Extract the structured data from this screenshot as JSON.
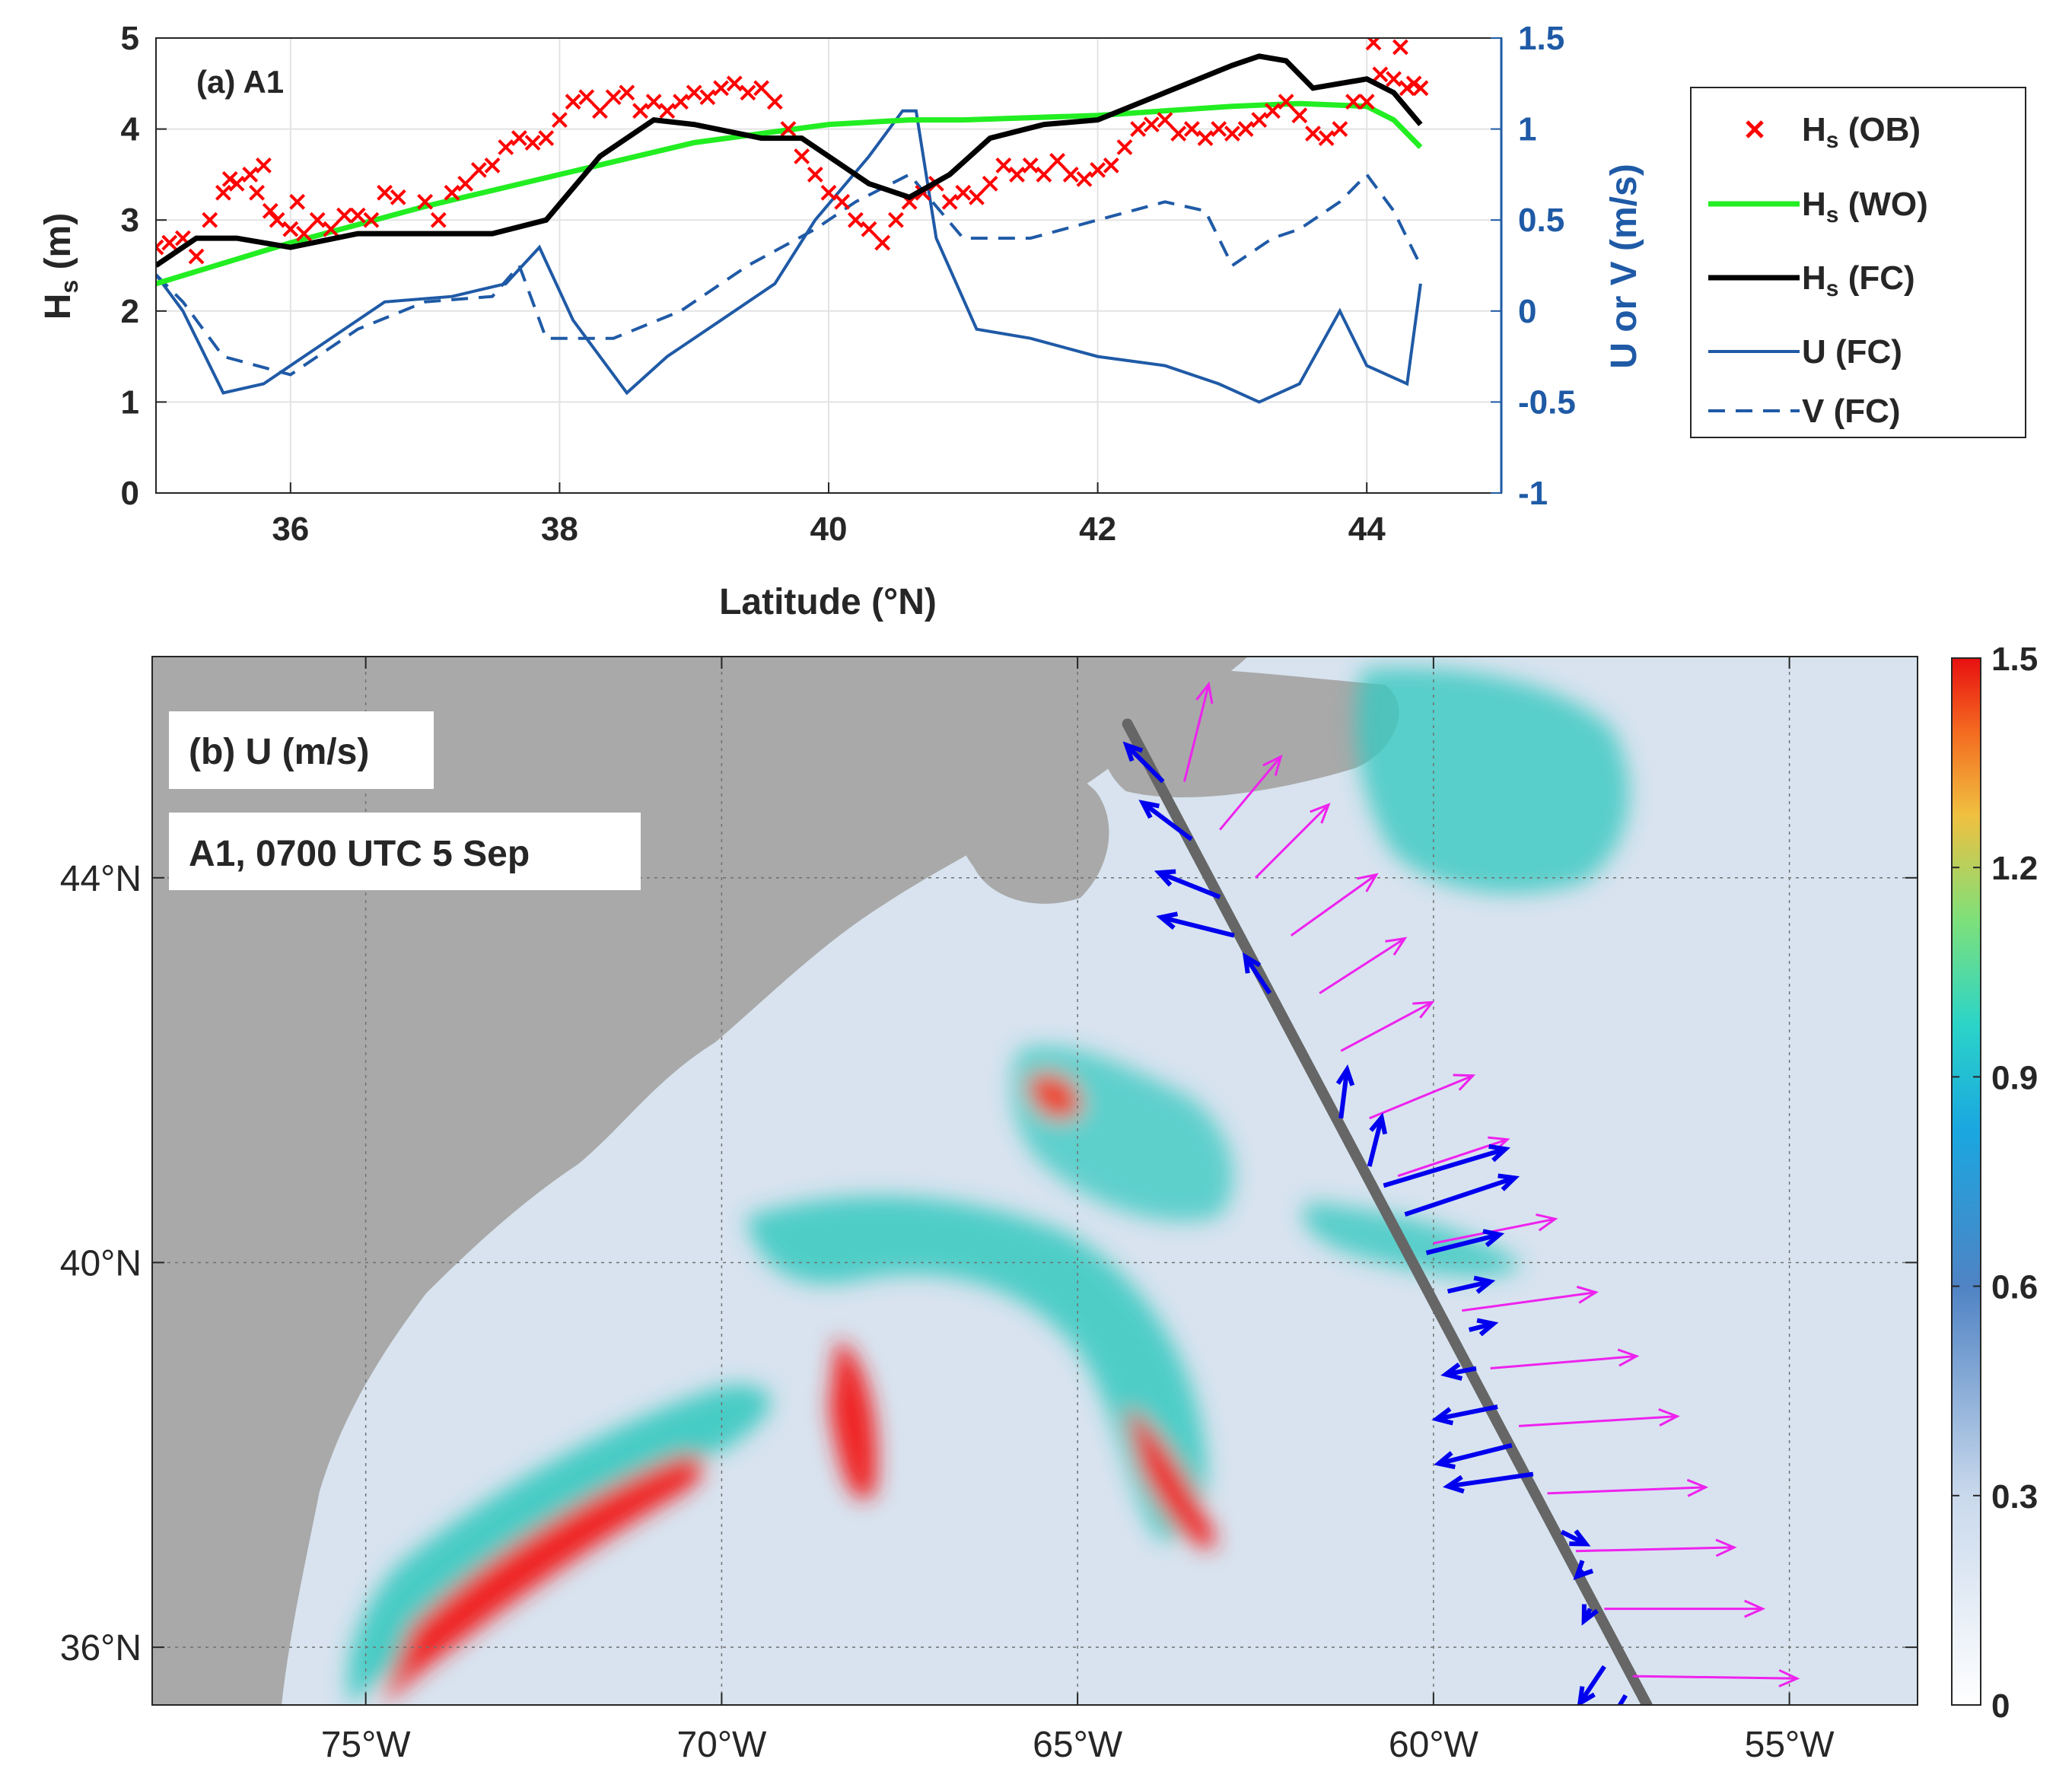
{
  "colors": {
    "obs": "#ff0000",
    "wo": "#22ee22",
    "fc": "#000000",
    "u": "#1f5aa6",
    "axis_right": "#1f5aa6",
    "land": "#a9a9a9",
    "track": "#666666",
    "arrow_blue": "#0000ee",
    "arrow_magenta": "#ee22ee"
  },
  "chart_data": [
    {
      "type": "line",
      "panel_label": "(a) A1",
      "xlabel": "Latitude (°N)",
      "ylabel_left": "Hs (m)",
      "ylabel_right": "U or V (m/s)",
      "xlim": [
        35,
        45
      ],
      "ylim_left": [
        0,
        5
      ],
      "ylim_right": [
        -1,
        1.5
      ],
      "xticks": [
        "36",
        "38",
        "40",
        "42",
        "44"
      ],
      "yticks_left": [
        "0",
        "1",
        "2",
        "3",
        "4",
        "5"
      ],
      "yticks_right": [
        "-1",
        "-0.5",
        "0",
        "0.5",
        "1",
        "1.5"
      ],
      "grid": true,
      "legend": {
        "position": "outside-right",
        "entries": [
          {
            "main": "H",
            "sub": "s",
            "tail": " (OB)"
          },
          {
            "main": "H",
            "sub": "s",
            "tail": " (WO)"
          },
          {
            "main": "H",
            "sub": "s",
            "tail": " (FC)"
          },
          {
            "main": "U",
            "sub": "",
            "tail": " (FC)"
          },
          {
            "main": "V",
            "sub": "",
            "tail": " (FC)"
          }
        ]
      },
      "series": [
        {
          "name": "Hs (OB)",
          "axis": "left",
          "style": "marker-x",
          "points": [
            [
              35.0,
              2.7
            ],
            [
              35.1,
              2.75
            ],
            [
              35.2,
              2.8
            ],
            [
              35.3,
              2.6
            ],
            [
              35.4,
              3.0
            ],
            [
              35.5,
              3.3
            ],
            [
              35.55,
              3.45
            ],
            [
              35.6,
              3.4
            ],
            [
              35.7,
              3.5
            ],
            [
              35.75,
              3.3
            ],
            [
              35.8,
              3.6
            ],
            [
              35.85,
              3.1
            ],
            [
              35.9,
              3.0
            ],
            [
              36.0,
              2.9
            ],
            [
              36.05,
              3.2
            ],
            [
              36.1,
              2.85
            ],
            [
              36.2,
              3.0
            ],
            [
              36.3,
              2.9
            ],
            [
              36.4,
              3.05
            ],
            [
              36.5,
              3.05
            ],
            [
              36.6,
              3.0
            ],
            [
              36.7,
              3.3
            ],
            [
              36.8,
              3.25
            ],
            [
              37.0,
              3.2
            ],
            [
              37.1,
              3.0
            ],
            [
              37.2,
              3.3
            ],
            [
              37.3,
              3.4
            ],
            [
              37.4,
              3.55
            ],
            [
              37.5,
              3.6
            ],
            [
              37.6,
              3.8
            ],
            [
              37.7,
              3.9
            ],
            [
              37.8,
              3.85
            ],
            [
              37.9,
              3.9
            ],
            [
              38.0,
              4.1
            ],
            [
              38.1,
              4.3
            ],
            [
              38.2,
              4.35
            ],
            [
              38.3,
              4.2
            ],
            [
              38.4,
              4.35
            ],
            [
              38.5,
              4.4
            ],
            [
              38.6,
              4.2
            ],
            [
              38.7,
              4.3
            ],
            [
              38.8,
              4.2
            ],
            [
              38.9,
              4.3
            ],
            [
              39.0,
              4.4
            ],
            [
              39.1,
              4.35
            ],
            [
              39.2,
              4.45
            ],
            [
              39.3,
              4.5
            ],
            [
              39.4,
              4.4
            ],
            [
              39.5,
              4.45
            ],
            [
              39.6,
              4.3
            ],
            [
              39.7,
              4.0
            ],
            [
              39.8,
              3.7
            ],
            [
              39.9,
              3.5
            ],
            [
              40.0,
              3.3
            ],
            [
              40.1,
              3.2
            ],
            [
              40.2,
              3.0
            ],
            [
              40.3,
              2.9
            ],
            [
              40.4,
              2.75
            ],
            [
              40.5,
              3.0
            ],
            [
              40.6,
              3.2
            ],
            [
              40.7,
              3.3
            ],
            [
              40.8,
              3.4
            ],
            [
              40.9,
              3.2
            ],
            [
              41.0,
              3.3
            ],
            [
              41.1,
              3.25
            ],
            [
              41.2,
              3.4
            ],
            [
              41.3,
              3.6
            ],
            [
              41.4,
              3.5
            ],
            [
              41.5,
              3.6
            ],
            [
              41.6,
              3.5
            ],
            [
              41.7,
              3.65
            ],
            [
              41.8,
              3.5
            ],
            [
              41.9,
              3.45
            ],
            [
              42.0,
              3.55
            ],
            [
              42.1,
              3.6
            ],
            [
              42.2,
              3.8
            ],
            [
              42.3,
              4.0
            ],
            [
              42.4,
              4.05
            ],
            [
              42.5,
              4.1
            ],
            [
              42.6,
              3.95
            ],
            [
              42.7,
              4.0
            ],
            [
              42.8,
              3.9
            ],
            [
              42.9,
              4.0
            ],
            [
              43.0,
              3.95
            ],
            [
              43.1,
              4.0
            ],
            [
              43.2,
              4.1
            ],
            [
              43.3,
              4.2
            ],
            [
              43.4,
              4.3
            ],
            [
              43.5,
              4.15
            ],
            [
              43.6,
              3.95
            ],
            [
              43.7,
              3.9
            ],
            [
              43.8,
              4.0
            ],
            [
              43.9,
              4.3
            ],
            [
              44.0,
              4.3
            ],
            [
              44.05,
              4.95
            ],
            [
              44.1,
              4.6
            ],
            [
              44.2,
              4.55
            ],
            [
              44.25,
              4.9
            ],
            [
              44.3,
              4.45
            ],
            [
              44.35,
              4.5
            ],
            [
              44.4,
              4.45
            ]
          ]
        },
        {
          "name": "Hs (WO)",
          "axis": "left",
          "style": "solid",
          "x": [
            35.0,
            36.0,
            37.0,
            38.0,
            39.0,
            40.0,
            40.6,
            41.0,
            42.0,
            43.0,
            43.5,
            44.0,
            44.2,
            44.4
          ],
          "values": [
            2.3,
            2.75,
            3.15,
            3.5,
            3.85,
            4.05,
            4.1,
            4.1,
            4.15,
            4.25,
            4.28,
            4.25,
            4.1,
            3.8
          ]
        },
        {
          "name": "Hs (FC)",
          "axis": "left",
          "style": "solid",
          "x": [
            35.0,
            35.3,
            35.6,
            36.0,
            36.5,
            37.0,
            37.5,
            37.9,
            38.3,
            38.7,
            39.0,
            39.5,
            39.8,
            40.0,
            40.3,
            40.6,
            40.9,
            41.2,
            41.6,
            42.0,
            42.5,
            43.0,
            43.2,
            43.4,
            43.6,
            44.0,
            44.2,
            44.4
          ],
          "values": [
            2.5,
            2.8,
            2.8,
            2.7,
            2.85,
            2.85,
            2.85,
            3.0,
            3.7,
            4.1,
            4.05,
            3.9,
            3.9,
            3.7,
            3.4,
            3.25,
            3.5,
            3.9,
            4.05,
            4.1,
            4.4,
            4.7,
            4.8,
            4.75,
            4.45,
            4.55,
            4.4,
            4.05
          ]
        },
        {
          "name": "U (FC)",
          "axis": "right",
          "style": "solid",
          "x": [
            35.0,
            35.2,
            35.5,
            35.8,
            36.2,
            36.7,
            37.2,
            37.6,
            37.85,
            38.1,
            38.5,
            38.8,
            39.2,
            39.6,
            39.9,
            40.3,
            40.55,
            40.65,
            40.8,
            41.1,
            41.5,
            42.0,
            42.5,
            42.9,
            43.2,
            43.5,
            43.8,
            44.0,
            44.3,
            44.4
          ],
          "values": [
            0.2,
            0.0,
            -0.45,
            -0.4,
            -0.2,
            0.05,
            0.08,
            0.15,
            0.35,
            -0.05,
            -0.45,
            -0.25,
            -0.05,
            0.15,
            0.5,
            0.85,
            1.1,
            1.1,
            0.4,
            -0.1,
            -0.15,
            -0.25,
            -0.3,
            -0.4,
            -0.5,
            -0.4,
            0.0,
            -0.3,
            -0.4,
            0.15
          ]
        },
        {
          "name": "V (FC)",
          "axis": "right",
          "style": "dashed",
          "x": [
            35.0,
            35.2,
            35.5,
            36.0,
            36.5,
            37.0,
            37.5,
            37.7,
            37.9,
            38.4,
            38.9,
            39.4,
            39.9,
            40.2,
            40.6,
            41.0,
            41.5,
            42.0,
            42.5,
            42.8,
            43.0,
            43.3,
            43.5,
            43.8,
            44.0,
            44.2,
            44.4
          ],
          "values": [
            0.2,
            0.05,
            -0.25,
            -0.35,
            -0.1,
            0.05,
            0.08,
            0.25,
            -0.15,
            -0.15,
            0.0,
            0.25,
            0.45,
            0.6,
            0.75,
            0.4,
            0.4,
            0.5,
            0.6,
            0.55,
            0.25,
            0.4,
            0.45,
            0.6,
            0.75,
            0.55,
            0.25
          ]
        }
      ]
    },
    {
      "type": "heatmap",
      "panel_label": "(b) U (m/s)",
      "subtitle": "A1, 0700 UTC 5 Sep",
      "xlabel": "",
      "ylabel": "",
      "xlim": [
        -78,
        -53.2
      ],
      "ylim": [
        35.4,
        46.3
      ],
      "xtick_values": [
        -75,
        -70,
        -65,
        -60,
        -55
      ],
      "xticks": [
        "75°W",
        "70°W",
        "65°W",
        "60°W",
        "55°W"
      ],
      "ytick_values": [
        36,
        40,
        44
      ],
      "yticks": [
        "36°N",
        "40°N",
        "44°N"
      ],
      "colorbar": {
        "range": [
          0,
          1.5
        ],
        "ticks": [
          "0",
          "0.3",
          "0.6",
          "0.9",
          "1.2",
          "1.5"
        ]
      },
      "track": {
        "start": [
          -64.3,
          45.6
        ],
        "end": [
          -57.0,
          35.4
        ]
      },
      "current_arrows": [
        {
          "lon": -63.8,
          "lat": 45.0,
          "u": -0.3,
          "v": 0.3
        },
        {
          "lon": -63.4,
          "lat": 44.4,
          "u": -0.4,
          "v": 0.3
        },
        {
          "lon": -63.0,
          "lat": 43.8,
          "u": -0.5,
          "v": 0.2
        },
        {
          "lon": -62.8,
          "lat": 43.4,
          "u": -0.6,
          "v": 0.15
        },
        {
          "lon": -62.3,
          "lat": 42.8,
          "u": -0.2,
          "v": 0.3
        },
        {
          "lon": -61.3,
          "lat": 41.5,
          "u": 0.05,
          "v": 0.4
        },
        {
          "lon": -60.9,
          "lat": 41.0,
          "u": 0.1,
          "v": 0.4
        },
        {
          "lon": -60.7,
          "lat": 40.8,
          "u": 1.0,
          "v": 0.3
        },
        {
          "lon": -60.4,
          "lat": 40.5,
          "u": 0.9,
          "v": 0.3
        },
        {
          "lon": -60.1,
          "lat": 40.1,
          "u": 0.6,
          "v": 0.15
        },
        {
          "lon": -59.8,
          "lat": 39.7,
          "u": 0.35,
          "v": 0.08
        },
        {
          "lon": -59.5,
          "lat": 39.3,
          "u": 0.2,
          "v": 0.05
        },
        {
          "lon": -59.4,
          "lat": 38.9,
          "u": -0.25,
          "v": -0.05
        },
        {
          "lon": -59.1,
          "lat": 38.5,
          "u": -0.5,
          "v": -0.1
        },
        {
          "lon": -58.9,
          "lat": 38.1,
          "u": -0.6,
          "v": -0.15
        },
        {
          "lon": -58.6,
          "lat": 37.8,
          "u": -0.7,
          "v": -0.1
        },
        {
          "lon": -58.2,
          "lat": 37.2,
          "u": 0.2,
          "v": -0.1
        },
        {
          "lon": -57.9,
          "lat": 36.8,
          "u": -0.05,
          "v": -0.05
        },
        {
          "lon": -57.8,
          "lat": 36.4,
          "u": -0.05,
          "v": -0.1
        },
        {
          "lon": -57.6,
          "lat": 35.8,
          "u": -0.2,
          "v": -0.3
        },
        {
          "lon": -57.3,
          "lat": 35.5,
          "u": -0.15,
          "v": -0.25
        }
      ],
      "wind_arrows": [
        {
          "lon": -63.5,
          "lat": 45.0,
          "u": 0.2,
          "v": 0.8
        },
        {
          "lon": -63.0,
          "lat": 44.5,
          "u": 0.5,
          "v": 0.6
        },
        {
          "lon": -62.5,
          "lat": 44.0,
          "u": 0.6,
          "v": 0.6
        },
        {
          "lon": -62.0,
          "lat": 43.4,
          "u": 0.7,
          "v": 0.5
        },
        {
          "lon": -61.6,
          "lat": 42.8,
          "u": 0.7,
          "v": 0.45
        },
        {
          "lon": -61.3,
          "lat": 42.2,
          "u": 0.75,
          "v": 0.4
        },
        {
          "lon": -60.9,
          "lat": 41.5,
          "u": 0.85,
          "v": 0.35
        },
        {
          "lon": -60.5,
          "lat": 40.9,
          "u": 0.9,
          "v": 0.3
        },
        {
          "lon": -60.0,
          "lat": 40.2,
          "u": 1.0,
          "v": 0.2
        },
        {
          "lon": -59.6,
          "lat": 39.5,
          "u": 1.1,
          "v": 0.15
        },
        {
          "lon": -59.2,
          "lat": 38.9,
          "u": 1.2,
          "v": 0.1
        },
        {
          "lon": -58.8,
          "lat": 38.3,
          "u": 1.3,
          "v": 0.08
        },
        {
          "lon": -58.4,
          "lat": 37.6,
          "u": 1.3,
          "v": 0.05
        },
        {
          "lon": -58.0,
          "lat": 37.0,
          "u": 1.3,
          "v": 0.03
        },
        {
          "lon": -57.6,
          "lat": 36.4,
          "u": 1.3,
          "v": 0.0
        },
        {
          "lon": -57.2,
          "lat": 35.7,
          "u": 1.35,
          "v": -0.02
        }
      ]
    }
  ]
}
